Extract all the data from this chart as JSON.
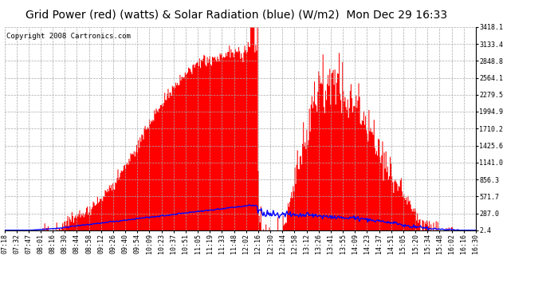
{
  "title": "Grid Power (red) (watts) & Solar Radiation (blue) (W/m2)  Mon Dec 29 16:33",
  "copyright": "Copyright 2008 Cartronics.com",
  "background_color": "#ffffff",
  "plot_bg_color": "#ffffff",
  "grid_color": "#aaaaaa",
  "yticks": [
    2.4,
    287.0,
    571.7,
    856.3,
    1141.0,
    1425.6,
    1710.2,
    1994.9,
    2279.5,
    2564.1,
    2848.8,
    3133.4,
    3418.1
  ],
  "ymin": 2.4,
  "ymax": 3418.1,
  "red_color": "#ff0000",
  "blue_color": "#0000ff",
  "title_fontsize": 10,
  "copyright_fontsize": 6.5,
  "tick_fontsize": 6,
  "xtick_labels": [
    "07:18",
    "07:32",
    "07:47",
    "08:01",
    "08:16",
    "08:30",
    "08:44",
    "08:58",
    "09:12",
    "09:26",
    "09:40",
    "09:54",
    "10:09",
    "10:23",
    "10:37",
    "10:51",
    "11:05",
    "11:19",
    "11:33",
    "11:48",
    "12:02",
    "12:16",
    "12:30",
    "12:44",
    "12:58",
    "13:12",
    "13:26",
    "13:41",
    "13:55",
    "14:09",
    "14:23",
    "14:37",
    "14:51",
    "15:05",
    "15:20",
    "15:34",
    "15:48",
    "16:02",
    "16:16",
    "16:30"
  ]
}
